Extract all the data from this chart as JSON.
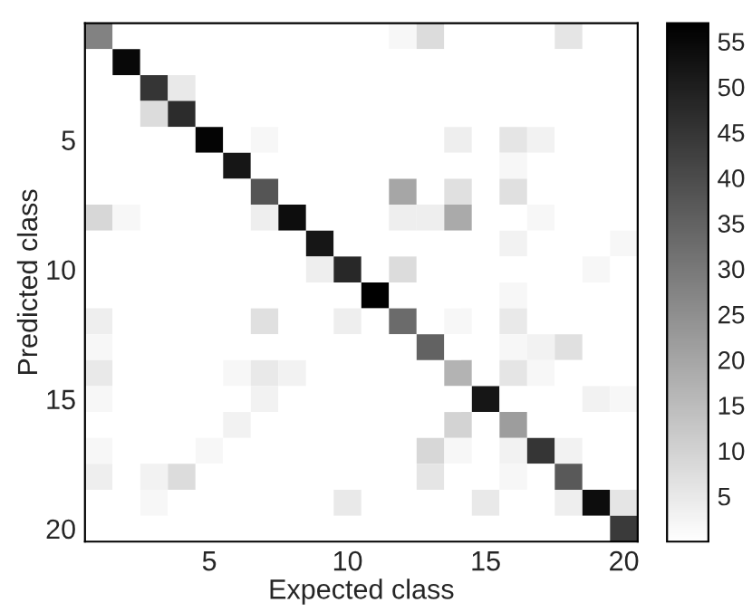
{
  "chart_data": {
    "type": "heatmap",
    "xlabel": "Expected class",
    "ylabel": "Predicted class",
    "categories": [
      null,
      null,
      null,
      null,
      "5",
      null,
      null,
      null,
      null,
      "10",
      null,
      null,
      null,
      null,
      "15",
      null,
      null,
      null,
      null,
      "20"
    ],
    "y_categories": [
      null,
      null,
      null,
      null,
      "5",
      null,
      null,
      null,
      null,
      "10",
      null,
      null,
      null,
      null,
      "15",
      null,
      null,
      null,
      null,
      "20"
    ],
    "cells": [
      [
        28,
        0,
        0,
        0,
        0,
        0,
        0,
        0,
        0,
        0,
        0,
        2,
        8,
        0,
        0,
        0,
        0,
        6,
        0,
        0
      ],
      [
        0,
        55,
        0,
        0,
        0,
        0,
        0,
        0,
        0,
        0,
        0,
        0,
        0,
        0,
        0,
        0,
        0,
        0,
        0,
        0
      ],
      [
        0,
        0,
        45,
        5,
        0,
        0,
        0,
        0,
        0,
        0,
        0,
        0,
        0,
        0,
        0,
        0,
        0,
        0,
        0,
        0
      ],
      [
        0,
        0,
        8,
        47,
        0,
        0,
        0,
        0,
        0,
        0,
        0,
        0,
        0,
        0,
        0,
        0,
        0,
        0,
        0,
        0
      ],
      [
        0,
        0,
        0,
        0,
        56,
        0,
        2,
        0,
        0,
        0,
        0,
        0,
        0,
        4,
        0,
        6,
        3,
        0,
        0,
        0
      ],
      [
        0,
        0,
        0,
        0,
        0,
        52,
        0,
        0,
        0,
        0,
        0,
        0,
        0,
        0,
        0,
        2,
        0,
        0,
        0,
        0
      ],
      [
        0,
        0,
        0,
        0,
        0,
        0,
        38,
        0,
        0,
        0,
        0,
        20,
        0,
        7,
        0,
        7,
        0,
        0,
        0,
        0
      ],
      [
        9,
        2,
        0,
        0,
        0,
        0,
        4,
        54,
        0,
        0,
        0,
        4,
        4,
        19,
        0,
        0,
        2,
        0,
        0,
        0
      ],
      [
        0,
        0,
        0,
        0,
        0,
        0,
        0,
        0,
        52,
        0,
        0,
        0,
        0,
        0,
        0,
        3,
        0,
        0,
        0,
        2
      ],
      [
        0,
        0,
        0,
        0,
        0,
        0,
        0,
        0,
        4,
        48,
        0,
        8,
        0,
        0,
        0,
        0,
        0,
        0,
        2,
        0
      ],
      [
        0,
        0,
        0,
        0,
        0,
        0,
        0,
        0,
        0,
        0,
        57,
        0,
        0,
        0,
        0,
        2,
        0,
        0,
        0,
        0
      ],
      [
        4,
        0,
        0,
        0,
        0,
        0,
        7,
        0,
        0,
        4,
        0,
        33,
        0,
        2,
        0,
        5,
        0,
        0,
        0,
        0
      ],
      [
        2,
        0,
        0,
        0,
        0,
        0,
        0,
        0,
        0,
        0,
        0,
        0,
        35,
        0,
        0,
        2,
        3,
        7,
        0,
        0
      ],
      [
        5,
        0,
        0,
        0,
        0,
        2,
        5,
        3,
        0,
        0,
        0,
        0,
        0,
        17,
        0,
        6,
        2,
        0,
        0,
        0
      ],
      [
        2,
        0,
        0,
        0,
        0,
        0,
        3,
        0,
        0,
        0,
        0,
        0,
        0,
        0,
        52,
        0,
        0,
        0,
        3,
        2
      ],
      [
        0,
        0,
        0,
        0,
        0,
        3,
        0,
        0,
        0,
        0,
        0,
        0,
        0,
        10,
        0,
        22,
        0,
        0,
        0,
        0
      ],
      [
        2,
        0,
        0,
        0,
        2,
        0,
        0,
        0,
        0,
        0,
        0,
        0,
        9,
        2,
        0,
        3,
        45,
        3,
        0,
        0
      ],
      [
        4,
        0,
        3,
        8,
        0,
        0,
        0,
        0,
        0,
        0,
        0,
        0,
        6,
        0,
        0,
        2,
        0,
        37,
        0,
        0
      ],
      [
        0,
        0,
        2,
        0,
        0,
        0,
        0,
        0,
        0,
        5,
        0,
        0,
        0,
        0,
        5,
        0,
        0,
        4,
        54,
        6
      ],
      [
        0,
        0,
        0,
        0,
        0,
        0,
        0,
        0,
        0,
        0,
        0,
        0,
        0,
        0,
        0,
        0,
        0,
        0,
        0,
        44
      ]
    ],
    "clim": [
      0,
      57
    ],
    "cticks": [
      5,
      10,
      15,
      20,
      25,
      30,
      35,
      40,
      45,
      50,
      55
    ]
  }
}
